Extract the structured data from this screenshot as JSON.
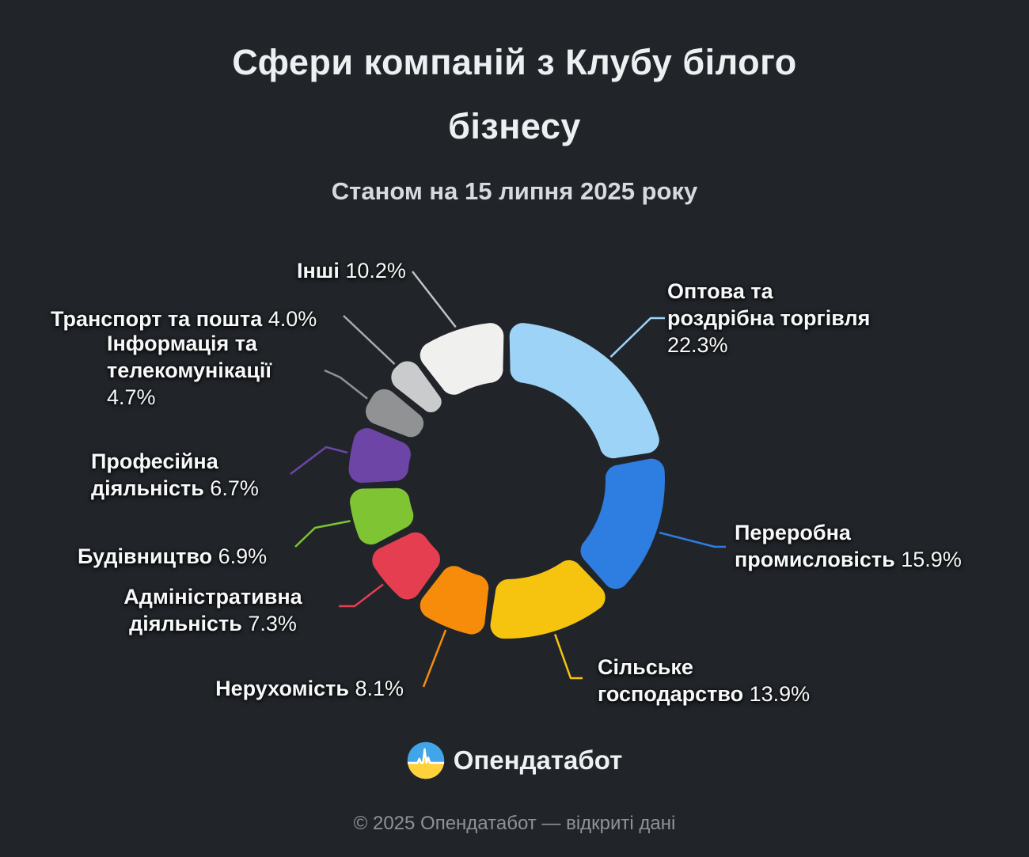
{
  "background": "#212529",
  "chart_data": {
    "type": "pie",
    "donut": true,
    "title": "Сфери компаній з Клубу білого бізнесу",
    "title_lines": [
      "Сфери компаній з Клубу білого",
      "бізнесу"
    ],
    "subtitle": "Станом на 15 липня 2025 року",
    "unit": "%",
    "start_angle_deg": 0,
    "direction": "clockwise",
    "slices": [
      {
        "id": "optova",
        "label": "Оптова та роздрібна торгівля",
        "value": 22.3,
        "pct": "22.3%",
        "color": "#9ed3f8",
        "label_lines": [
          "Оптова та",
          "роздрібна торгівля",
          "{pct}"
        ]
      },
      {
        "id": "pererobna",
        "label": "Переробна промисловість",
        "value": 15.9,
        "pct": "15.9%",
        "color": "#2e7de1",
        "label_lines": [
          "Переробна",
          "промисловість {pct}"
        ]
      },
      {
        "id": "silske",
        "label": "Сільське господарство",
        "value": 13.9,
        "pct": "13.9%",
        "color": "#f6c40e",
        "label_lines": [
          "Сільське",
          "господарство {pct}"
        ]
      },
      {
        "id": "neruhomist",
        "label": "Нерухомість",
        "value": 8.1,
        "pct": "8.1%",
        "color": "#f78c0b",
        "label_lines": [
          "Нерухомість {pct}"
        ]
      },
      {
        "id": "admin",
        "label": "Адміністративна діяльність",
        "value": 7.3,
        "pct": "7.3%",
        "color": "#e53e51",
        "label_lines": [
          "Адміністративна",
          "діяльність {pct}"
        ]
      },
      {
        "id": "budivnytstvo",
        "label": "Будівництво",
        "value": 6.9,
        "pct": "6.9%",
        "color": "#7ec433",
        "label_lines": [
          "Будівництво {pct}"
        ]
      },
      {
        "id": "profesiina",
        "label": "Професійна діяльність",
        "value": 6.7,
        "pct": "6.7%",
        "color": "#6d45a7",
        "label_lines": [
          "Професійна",
          "діяльність {pct}"
        ]
      },
      {
        "id": "informatsiia",
        "label": "Інформація та телекомунікації",
        "value": 4.7,
        "pct": "4.7%",
        "color": "#919294",
        "label_lines": [
          "Інформація та",
          "телекомунікації",
          "{pct}"
        ]
      },
      {
        "id": "transport",
        "label": "Транспорт та пошта",
        "value": 4.0,
        "pct": "4.0%",
        "color": "#cacbcc",
        "leader_color": "#a9aaab",
        "label_lines": [
          "Транспорт та пошта {pct}"
        ]
      },
      {
        "id": "inshi",
        "label": "Інші",
        "value": 10.2,
        "pct": "10.2%",
        "color": "#f0f0ee",
        "leader_color": "#c2c2c2",
        "label_lines": [
          "Інші {pct}"
        ]
      }
    ]
  },
  "logo": {
    "text": "Опендатабот",
    "flag_blue": "#42a4e9",
    "flag_yellow": "#ffd23c",
    "pulse_color": "#ffffff"
  },
  "footer": {
    "text": "© 2025 Опендатабот — відкриті дані"
  }
}
